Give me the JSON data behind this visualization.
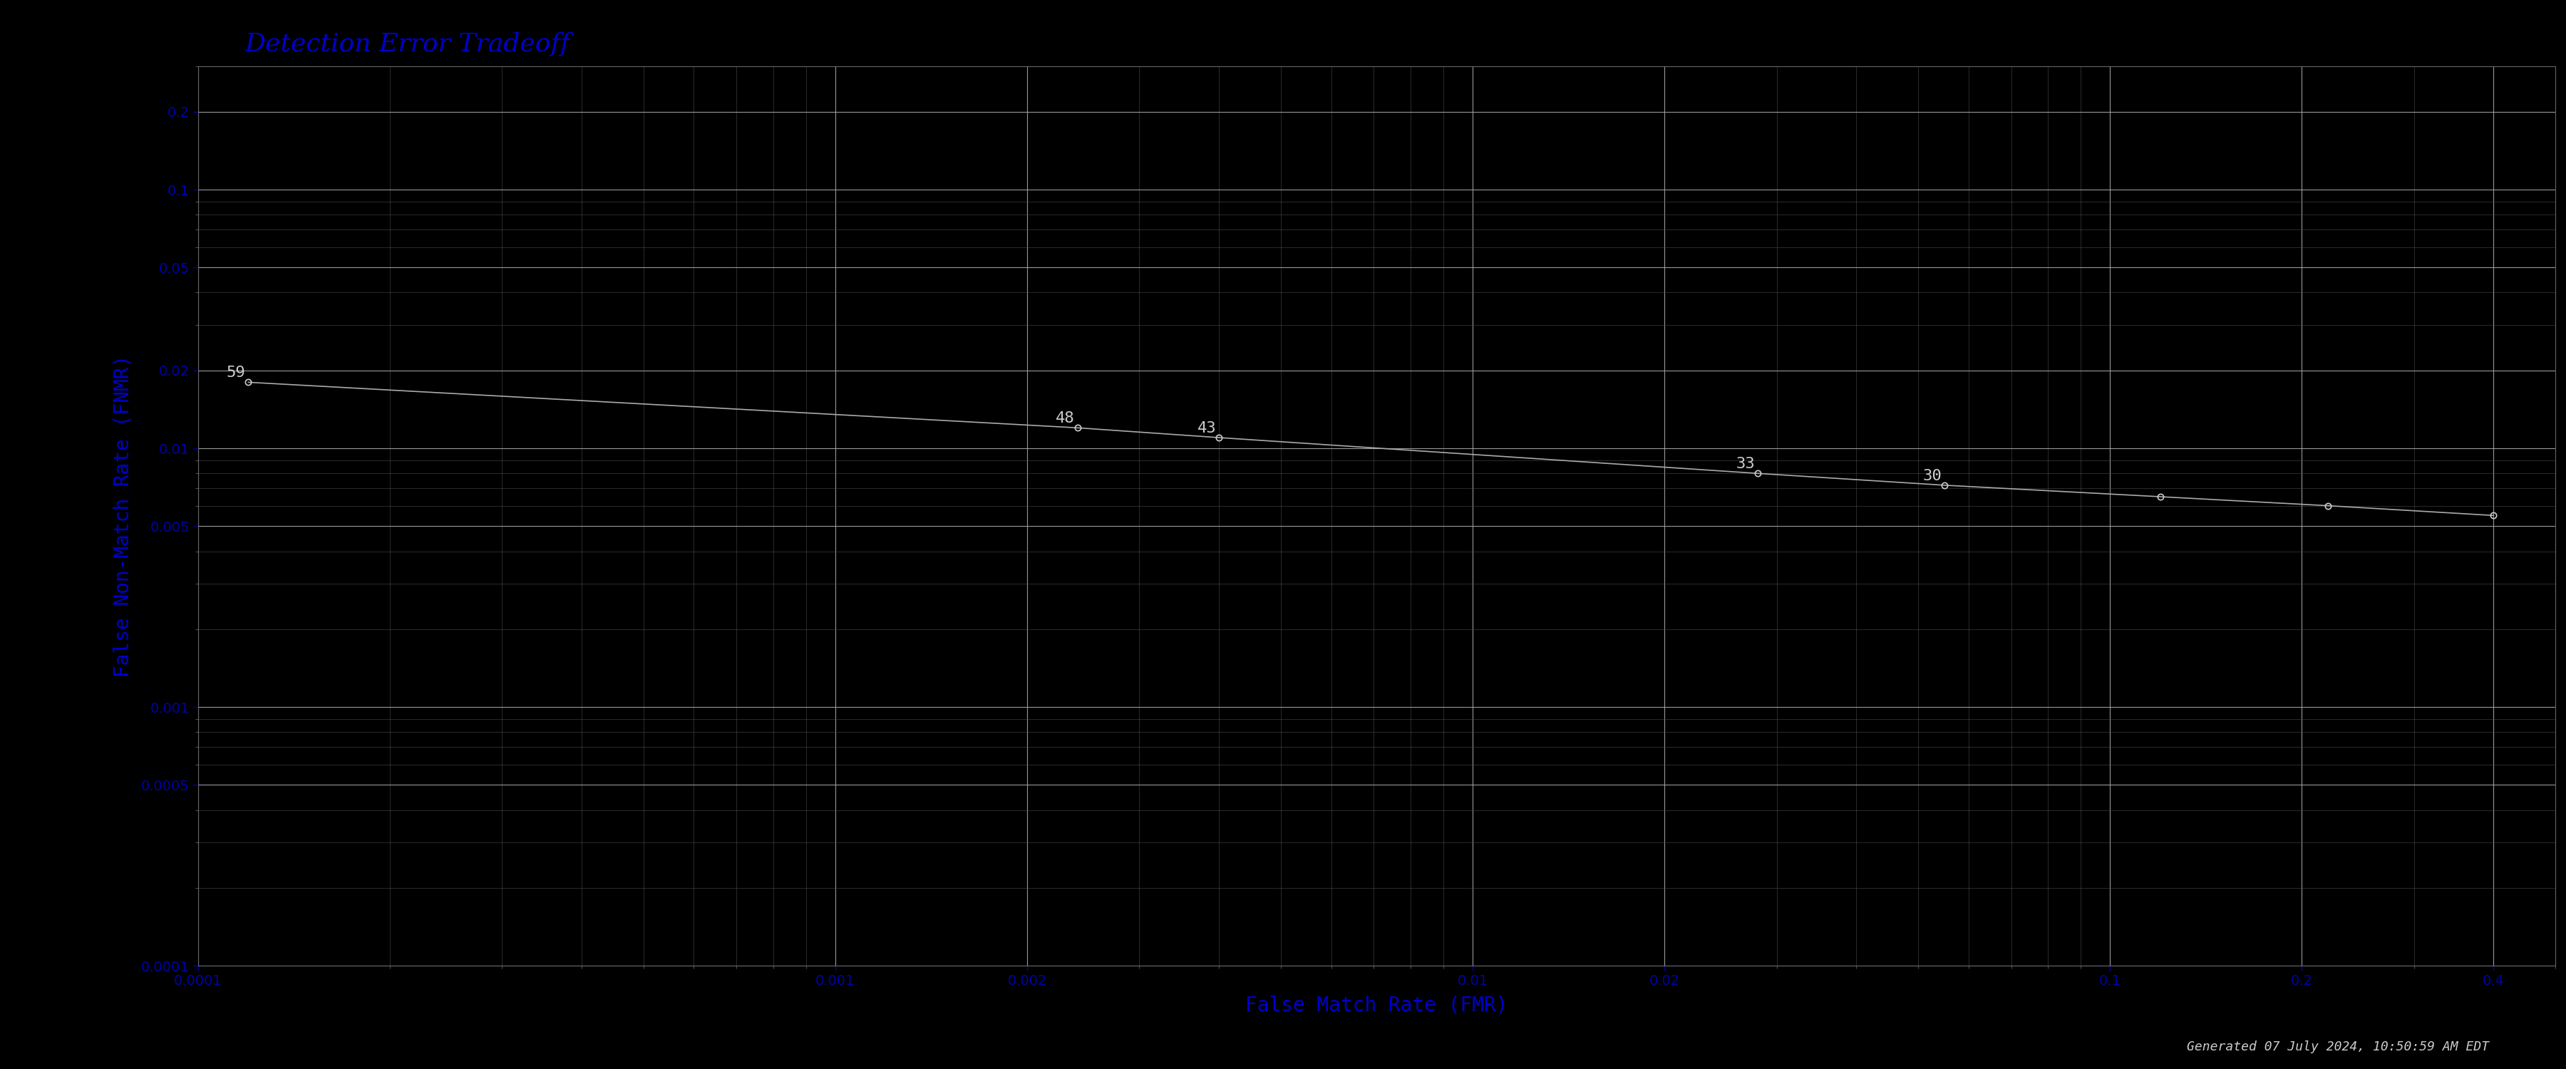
{
  "title": "Detection Error Tradeoff",
  "xlabel": "False Match Rate (FMR)",
  "ylabel": "False Non-Match Rate (FNMR)",
  "background_color": "#000000",
  "title_color": "#0000CC",
  "label_color": "#0000CC",
  "tick_color": "#0000AA",
  "grid_color_major": "#aaaaaa",
  "grid_color_minor": "#555555",
  "curve_color": "#aaaaaa",
  "annotation_color": "#cccccc",
  "footer_text": "Generated 07 July 2024, 10:50:59 AM EDT",
  "footer_color": "#cccccc",
  "xlim_lo": 0.0001,
  "xlim_hi": 0.5,
  "ylim_lo": 0.0001,
  "ylim_hi": 0.3,
  "curve_points": [
    {
      "threshold": 59,
      "fmr": 0.00012,
      "fnmr": 0.018
    },
    {
      "threshold": 48,
      "fmr": 0.0024,
      "fnmr": 0.012
    },
    {
      "threshold": 43,
      "fmr": 0.004,
      "fnmr": 0.011
    },
    {
      "threshold": 33,
      "fmr": 0.028,
      "fnmr": 0.008
    },
    {
      "threshold": 30,
      "fmr": 0.055,
      "fnmr": 0.0072
    },
    {
      "threshold": "",
      "fmr": 0.12,
      "fnmr": 0.0065
    },
    {
      "threshold": "",
      "fmr": 0.22,
      "fnmr": 0.006
    },
    {
      "threshold": "",
      "fmr": 0.4,
      "fnmr": 0.0055
    }
  ],
  "x_major_ticks": [
    0.0001,
    0.002,
    0.01,
    0.1,
    0.2,
    0.4
  ],
  "y_major_ticks": [
    0.2,
    0.1,
    0.05,
    0.02,
    0.01,
    0.005,
    0.001,
    0.0005,
    0.0001
  ],
  "tick_fontsize": 14,
  "label_fontsize": 20,
  "title_fontsize": 26,
  "footer_fontsize": 13,
  "annotation_fontsize": 16
}
